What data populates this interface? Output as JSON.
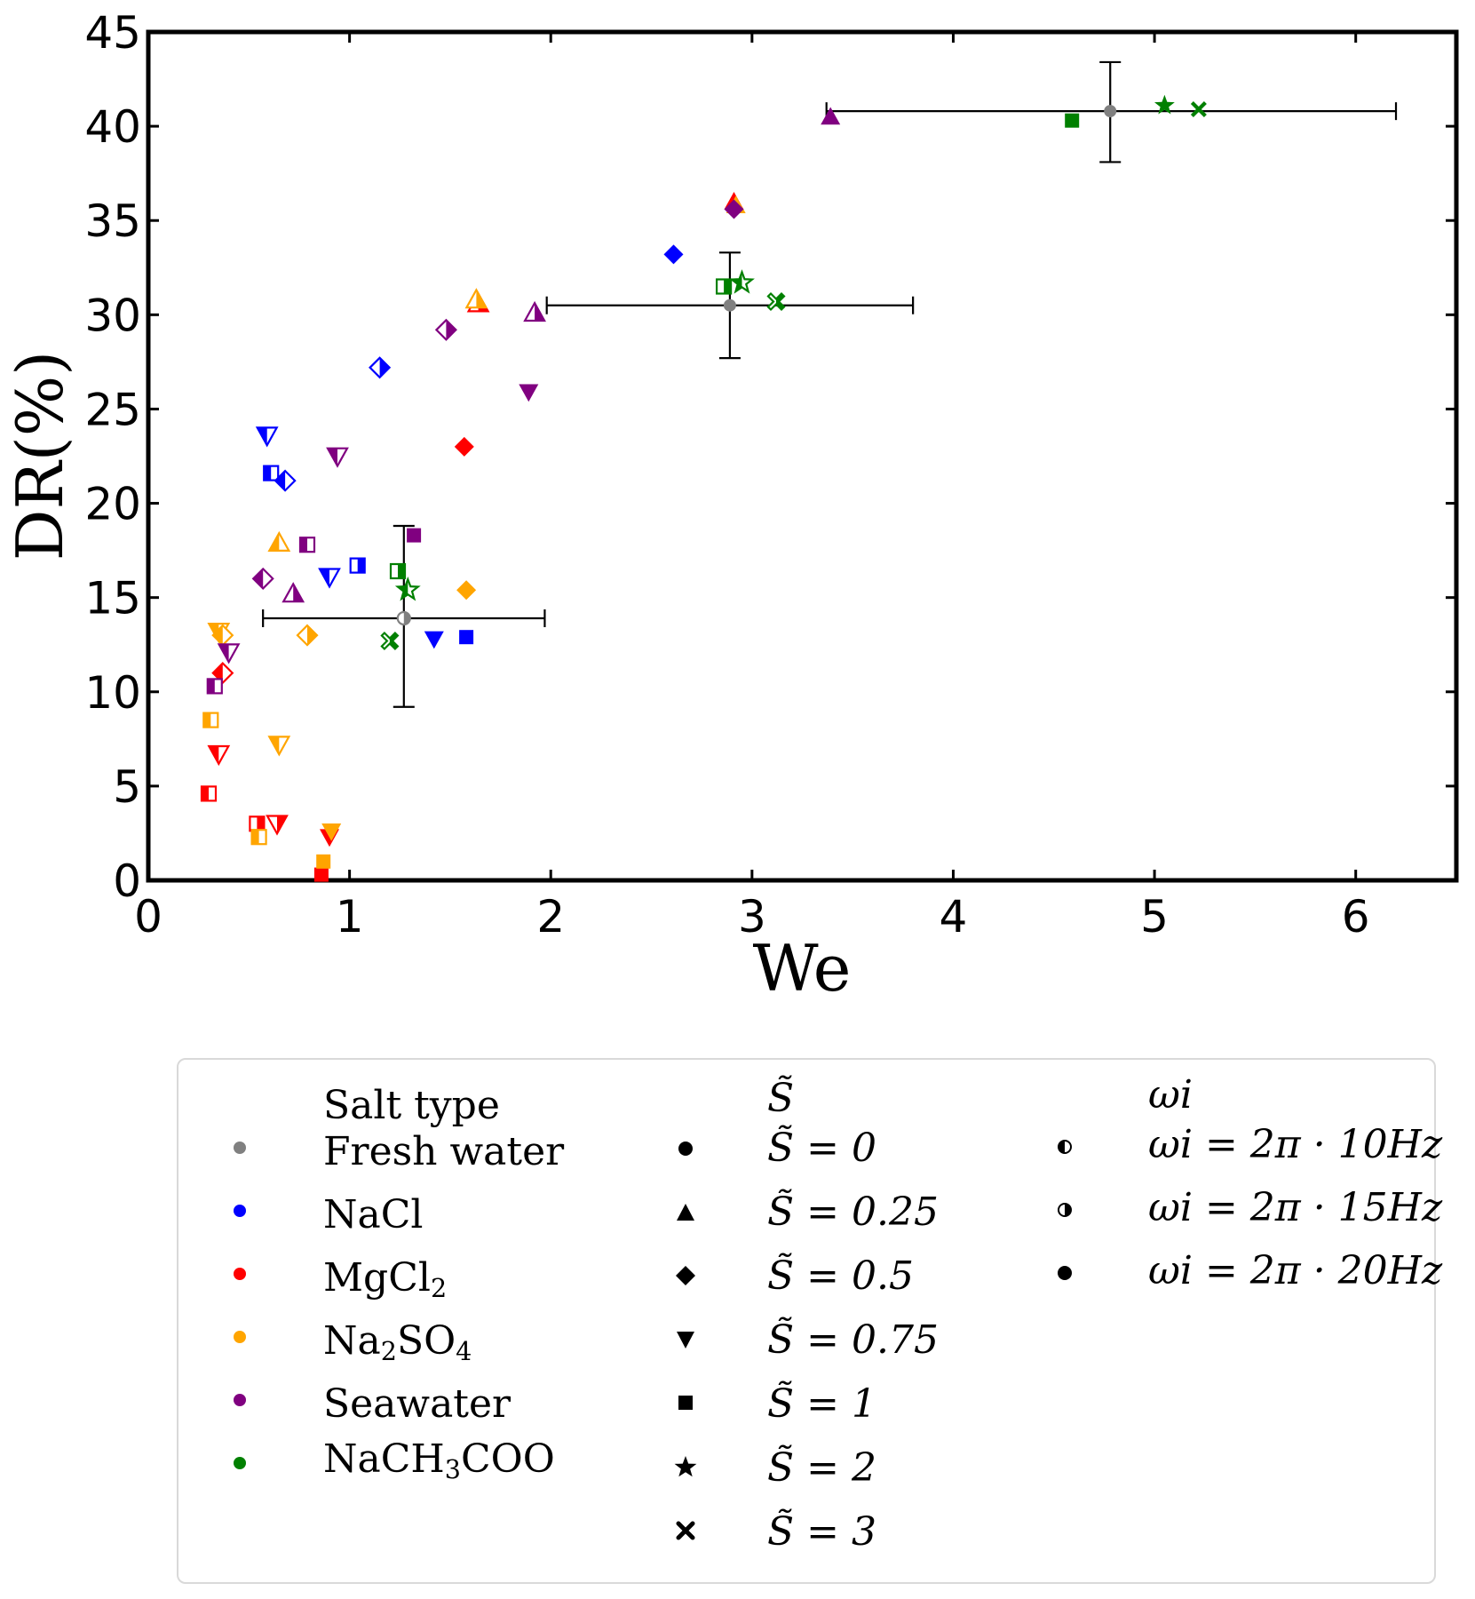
{
  "chart_data": {
    "type": "scatter",
    "xlabel": "We",
    "ylabel": "DR(%)",
    "xlim": [
      0,
      6.5
    ],
    "ylim": [
      0,
      45
    ],
    "x_ticks": [
      0,
      1,
      2,
      3,
      4,
      5,
      6
    ],
    "y_ticks": [
      0,
      5,
      10,
      15,
      20,
      25,
      30,
      35,
      40,
      45
    ],
    "grid": false,
    "colors": {
      "Fresh water": "#808080",
      "NaCl": "#0000ff",
      "MgCl2": "#ff0000",
      "Na2SO4": "#ffa500",
      "Seawater": "#800080",
      "NaCH3COO": "#008000"
    },
    "points": [
      {
        "salt": "NaCl",
        "S": 0.75,
        "f": 10,
        "x": 0.59,
        "y": 23.6
      },
      {
        "salt": "NaCl",
        "S": 1,
        "f": 10,
        "x": 0.61,
        "y": 21.6
      },
      {
        "salt": "NaCl",
        "S": 0.5,
        "f": 10,
        "x": 0.68,
        "y": 21.2
      },
      {
        "salt": "NaCl",
        "S": 0.75,
        "f": 10,
        "x": 0.9,
        "y": 16.1
      },
      {
        "salt": "NaCl",
        "S": 1,
        "f": 15,
        "x": 1.04,
        "y": 16.7
      },
      {
        "salt": "NaCl",
        "S": 0.5,
        "f": 15,
        "x": 1.15,
        "y": 27.2
      },
      {
        "salt": "NaCl",
        "S": 0.75,
        "f": 20,
        "x": 1.42,
        "y": 12.8
      },
      {
        "salt": "NaCl",
        "S": 1,
        "f": 20,
        "x": 1.58,
        "y": 12.9
      },
      {
        "salt": "NaCl",
        "S": 0.5,
        "f": 20,
        "x": 2.61,
        "y": 33.2
      },
      {
        "salt": "MgCl2",
        "S": 1,
        "f": 10,
        "x": 0.3,
        "y": 4.6
      },
      {
        "salt": "MgCl2",
        "S": 0.75,
        "f": 10,
        "x": 0.35,
        "y": 6.7
      },
      {
        "salt": "MgCl2",
        "S": 0.5,
        "f": 10,
        "x": 0.37,
        "y": 11.0
      },
      {
        "salt": "MgCl2",
        "S": 1,
        "f": 15,
        "x": 0.54,
        "y": 3.0
      },
      {
        "salt": "MgCl2",
        "S": 0.75,
        "f": 15,
        "x": 0.64,
        "y": 3.0
      },
      {
        "salt": "MgCl2",
        "S": 1,
        "f": 20,
        "x": 0.86,
        "y": 0.3
      },
      {
        "salt": "MgCl2",
        "S": 0.75,
        "f": 20,
        "x": 0.9,
        "y": 2.3
      },
      {
        "salt": "MgCl2",
        "S": 0.25,
        "f": 15,
        "x": 1.64,
        "y": 30.6
      },
      {
        "salt": "MgCl2",
        "S": 0.5,
        "f": 20,
        "x": 1.57,
        "y": 23.0
      },
      {
        "salt": "MgCl2",
        "S": 0.25,
        "f": 20,
        "x": 2.91,
        "y": 36.0
      },
      {
        "salt": "Na2SO4",
        "S": 1,
        "f": 10,
        "x": 0.31,
        "y": 8.5
      },
      {
        "salt": "Na2SO4",
        "S": 0.75,
        "f": 10,
        "x": 0.35,
        "y": 13.2
      },
      {
        "salt": "Na2SO4",
        "S": 0.5,
        "f": 10,
        "x": 0.37,
        "y": 13.0
      },
      {
        "salt": "Na2SO4",
        "S": 1,
        "f": 10,
        "x": 0.55,
        "y": 2.3
      },
      {
        "salt": "Na2SO4",
        "S": 0.25,
        "f": 10,
        "x": 0.65,
        "y": 17.9
      },
      {
        "salt": "Na2SO4",
        "S": 0.75,
        "f": 10,
        "x": 0.65,
        "y": 7.2
      },
      {
        "salt": "Na2SO4",
        "S": 0.5,
        "f": 15,
        "x": 0.79,
        "y": 13.0
      },
      {
        "salt": "Na2SO4",
        "S": 1,
        "f": 20,
        "x": 0.87,
        "y": 1.0
      },
      {
        "salt": "Na2SO4",
        "S": 0.75,
        "f": 20,
        "x": 0.91,
        "y": 2.6
      },
      {
        "salt": "Na2SO4",
        "S": 0.25,
        "f": 15,
        "x": 1.63,
        "y": 30.8
      },
      {
        "salt": "Na2SO4",
        "S": 0.5,
        "f": 20,
        "x": 1.58,
        "y": 15.4
      },
      {
        "salt": "Na2SO4",
        "S": 0.25,
        "f": 20,
        "x": 2.92,
        "y": 35.8
      },
      {
        "salt": "Seawater",
        "S": 1,
        "f": 10,
        "x": 0.33,
        "y": 10.3
      },
      {
        "salt": "Seawater",
        "S": 0.75,
        "f": 10,
        "x": 0.4,
        "y": 12.1
      },
      {
        "salt": "Seawater",
        "S": 0.5,
        "f": 10,
        "x": 0.57,
        "y": 16.0
      },
      {
        "salt": "Seawater",
        "S": 0.25,
        "f": 15,
        "x": 0.72,
        "y": 15.2
      },
      {
        "salt": "Seawater",
        "S": 1,
        "f": 10,
        "x": 0.79,
        "y": 17.8
      },
      {
        "salt": "Seawater",
        "S": 0.75,
        "f": 10,
        "x": 0.94,
        "y": 22.5
      },
      {
        "salt": "Seawater",
        "S": 1,
        "f": 20,
        "x": 1.32,
        "y": 18.3
      },
      {
        "salt": "Seawater",
        "S": 0.5,
        "f": 15,
        "x": 1.48,
        "y": 29.2
      },
      {
        "salt": "Seawater",
        "S": 0.75,
        "f": 20,
        "x": 1.89,
        "y": 25.9
      },
      {
        "salt": "Seawater",
        "S": 0.25,
        "f": 15,
        "x": 1.92,
        "y": 30.1
      },
      {
        "salt": "Seawater",
        "S": 0.5,
        "f": 20,
        "x": 2.91,
        "y": 35.6
      },
      {
        "salt": "Seawater",
        "S": 0.25,
        "f": 20,
        "x": 3.39,
        "y": 40.5
      },
      {
        "salt": "NaCH3COO",
        "S": 1,
        "f": 15,
        "x": 1.24,
        "y": 16.4
      },
      {
        "salt": "NaCH3COO",
        "S": 2,
        "f": 10,
        "x": 1.29,
        "y": 15.4
      },
      {
        "salt": "NaCH3COO",
        "S": 3,
        "f": 15,
        "x": 1.2,
        "y": 12.7
      },
      {
        "salt": "NaCH3COO",
        "S": 1,
        "f": 15,
        "x": 2.86,
        "y": 31.5
      },
      {
        "salt": "NaCH3COO",
        "S": 2,
        "f": 10,
        "x": 2.95,
        "y": 31.7
      },
      {
        "salt": "NaCH3COO",
        "S": 3,
        "f": 15,
        "x": 3.12,
        "y": 30.7
      },
      {
        "salt": "NaCH3COO",
        "S": 1,
        "f": 20,
        "x": 4.59,
        "y": 40.3
      },
      {
        "salt": "NaCH3COO",
        "S": 2,
        "f": 20,
        "x": 5.05,
        "y": 41.1
      },
      {
        "salt": "NaCH3COO",
        "S": 3,
        "f": 20,
        "x": 5.22,
        "y": 40.9
      }
    ],
    "errorbars": [
      {
        "salt": "Fresh water",
        "S": 0,
        "f": 15,
        "x": 1.27,
        "y": 13.9,
        "xerr": [
          0.57,
          1.97
        ],
        "yerr": [
          9.2,
          18.8
        ]
      },
      {
        "salt": "Fresh water",
        "S": 0,
        "f": 20,
        "x": 2.89,
        "y": 30.5,
        "xerr": [
          1.98,
          3.8
        ],
        "yerr": [
          27.7,
          33.3
        ]
      },
      {
        "salt": "Fresh water",
        "S": 0,
        "f": 20,
        "x": 4.78,
        "y": 40.8,
        "xerr": [
          3.37,
          6.2
        ],
        "yerr": [
          38.1,
          43.4
        ]
      }
    ]
  },
  "legend": {
    "columns": [
      {
        "header": "Salt type",
        "entries": [
          {
            "label": "Fresh water",
            "color": "#808080"
          },
          {
            "label": "NaCl",
            "color": "#0000ff"
          },
          {
            "label": "MgCl2",
            "color": "#ff0000"
          },
          {
            "label": "Na2SO4",
            "color": "#ffa500"
          },
          {
            "label": "Seawater",
            "color": "#800080"
          },
          {
            "label": "NaCH3COO",
            "color": "#008000"
          }
        ]
      },
      {
        "header": "S̃",
        "entries": [
          {
            "label": "S̃ = 0",
            "marker": "circle"
          },
          {
            "label": "S̃ = 0.25",
            "marker": "triangle-up"
          },
          {
            "label": "S̃ = 0.5",
            "marker": "diamond"
          },
          {
            "label": "S̃ = 0.75",
            "marker": "triangle-down"
          },
          {
            "label": "S̃ = 1",
            "marker": "square"
          },
          {
            "label": "S̃ = 2",
            "marker": "star"
          },
          {
            "label": "S̃ = 3",
            "marker": "x"
          }
        ]
      },
      {
        "header": "ωi",
        "entries": [
          {
            "label": "ωi = 2π · 10Hz",
            "fill": "left-half"
          },
          {
            "label": "ωi = 2π · 15Hz",
            "fill": "right-half"
          },
          {
            "label": "ωi = 2π · 20Hz",
            "fill": "full"
          }
        ]
      }
    ]
  }
}
